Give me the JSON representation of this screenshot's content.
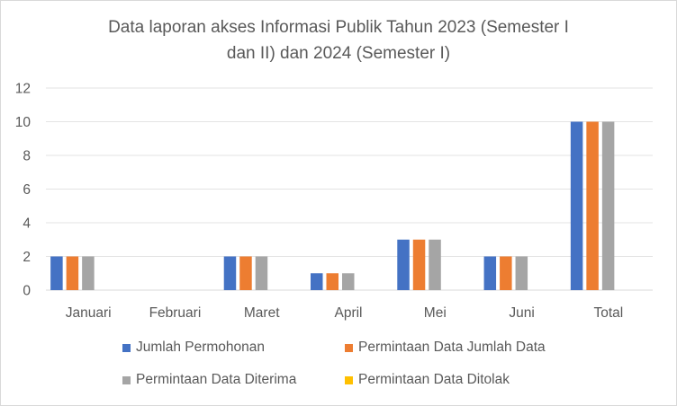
{
  "chart_data": {
    "type": "bar",
    "title_line1": "Data laporan akses Informasi Publik Tahun 2023 (Semester I",
    "title_line2": "dan II) dan 2024 (Semester I)",
    "categories": [
      "Januari",
      "Februari",
      "Maret",
      "April",
      "Mei",
      "Juni",
      "Total"
    ],
    "series": [
      {
        "name": "Jumlah Permohonan",
        "color": "#4472c4",
        "values": [
          2,
          0,
          2,
          1,
          3,
          2,
          10
        ]
      },
      {
        "name": "Permintaan Data Jumlah Data",
        "color": "#ed7d31",
        "values": [
          2,
          0,
          2,
          1,
          3,
          2,
          10
        ]
      },
      {
        "name": "Permintaan Data Diterima",
        "color": "#a5a5a5",
        "values": [
          2,
          0,
          2,
          1,
          3,
          2,
          10
        ]
      },
      {
        "name": "Permintaan Data Ditolak",
        "color": "#ffc000",
        "values": [
          0,
          0,
          0,
          0,
          0,
          0,
          0
        ]
      }
    ],
    "ylim": [
      0,
      12
    ],
    "yticks": [
      "0",
      "2",
      "4",
      "6",
      "8",
      "10",
      "12"
    ],
    "grid": true,
    "legend_position": "bottom"
  }
}
